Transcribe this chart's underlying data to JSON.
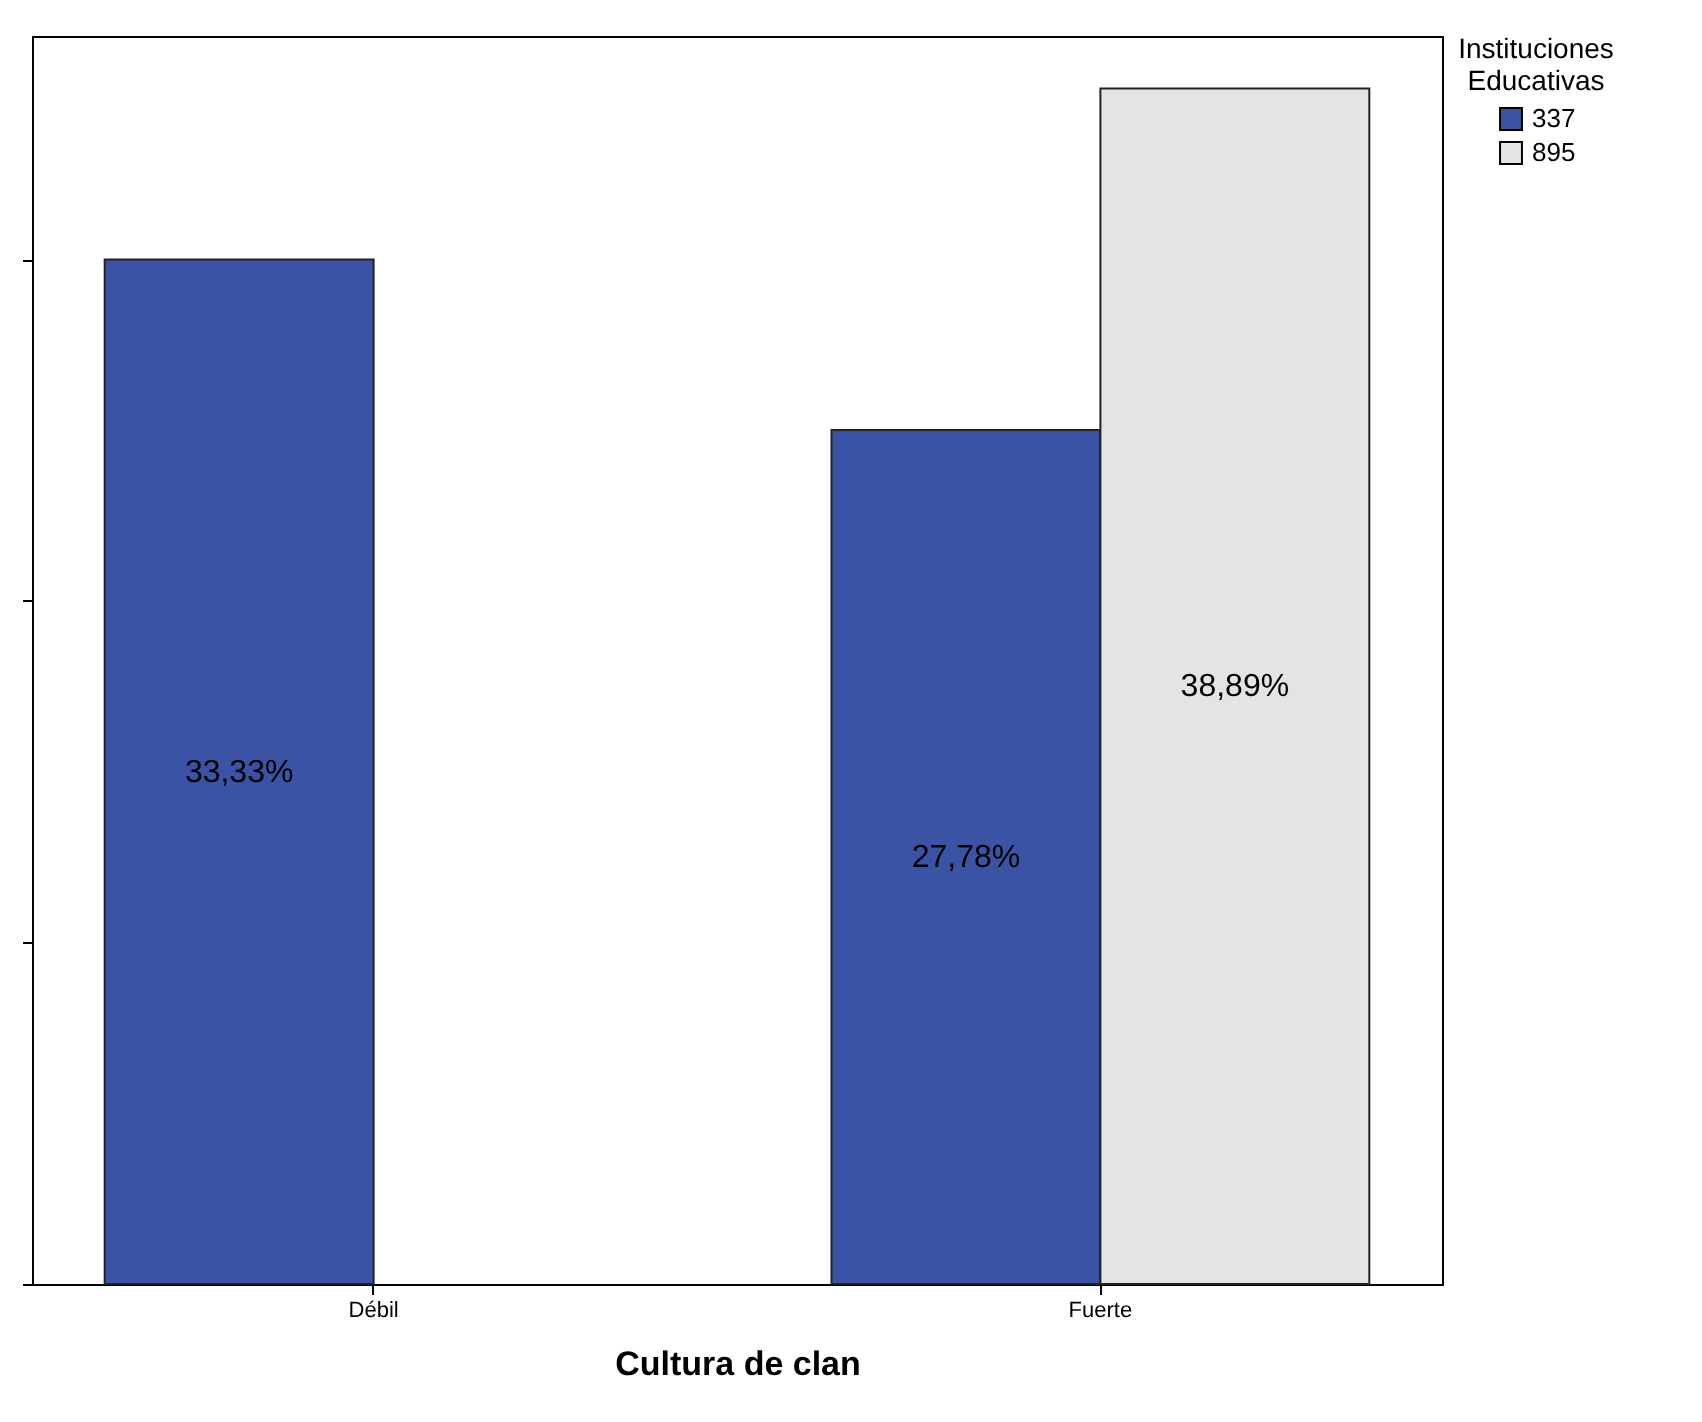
{
  "chart_data": {
    "type": "bar",
    "xlabel": "Cultura de clan",
    "legend_title": "Instituciones Educativas",
    "legend": "top right",
    "categories": [
      "Débil",
      "Fuerte"
    ],
    "series": [
      {
        "name": "337",
        "color": "#3a53a4",
        "values": [
          33.33,
          27.78
        ],
        "value_labels": [
          "33,33%",
          "27,78%"
        ]
      },
      {
        "name": "895",
        "color": "#e4e4e4",
        "values": [
          null,
          38.89
        ],
        "value_labels": [
          null,
          "38,89%"
        ]
      }
    ],
    "ylim": [
      0,
      40.6
    ],
    "yticks": [
      {
        "value": 0,
        "label": null
      },
      {
        "value": 11.11,
        "label": null
      },
      {
        "value": 22.22,
        "label": null
      },
      {
        "value": 33.33,
        "label": null
      }
    ],
    "tick_labels": "x",
    "grid": false
  }
}
